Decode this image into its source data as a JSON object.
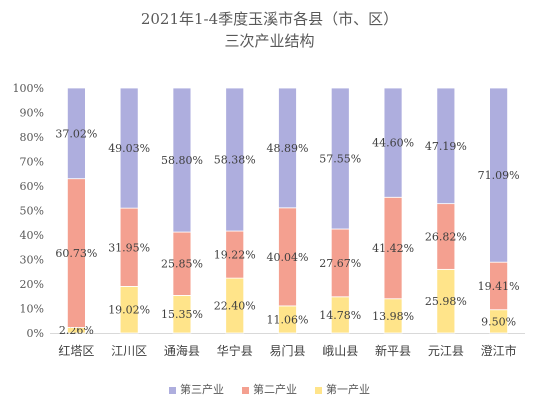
{
  "title": "2021年1-4季度玉溪市各县（市、区）",
  "subtitle": "三次产业结构",
  "chart_data": {
    "type": "bar",
    "stacked": true,
    "percent": true,
    "title": "2021年1-4季度玉溪市各县（市、区）",
    "subtitle": "三次产业结构",
    "categories": [
      "红塔区",
      "江川区",
      "通海县",
      "华宁县",
      "易门县",
      "峨山县",
      "新平县",
      "元江县",
      "澄江市"
    ],
    "ylim": [
      0,
      100
    ],
    "yticks": [
      "0%",
      "10%",
      "20%",
      "30%",
      "40%",
      "50%",
      "60%",
      "70%",
      "80%",
      "90%",
      "100%"
    ],
    "grid": false,
    "legend_position": "bottom",
    "series": [
      {
        "name": "第一产业",
        "color": "#ffe48a",
        "values": [
          2.26,
          19.02,
          15.35,
          22.4,
          11.06,
          14.78,
          13.98,
          25.98,
          9.5
        ],
        "labels": [
          "2.26%",
          "19.02%",
          "15.35%",
          "22.40%",
          "11.06%",
          "14.78%",
          "13.98%",
          "25.98%",
          "9.50%"
        ]
      },
      {
        "name": "第二产业",
        "color": "#f4a090",
        "values": [
          60.73,
          31.95,
          25.85,
          19.22,
          40.04,
          27.67,
          41.42,
          26.82,
          19.41
        ],
        "labels": [
          "60.73%",
          "31.95%",
          "25.85%",
          "19.22%",
          "40.04%",
          "27.67%",
          "41.42%",
          "26.82%",
          "19.41%"
        ]
      },
      {
        "name": "第三产业",
        "color": "#aeaede",
        "values": [
          37.02,
          49.03,
          58.8,
          58.38,
          48.89,
          57.55,
          44.6,
          47.19,
          71.09
        ],
        "labels": [
          "37.02%",
          "49.03%",
          "58.80%",
          "58.38%",
          "48.89%",
          "57.55%",
          "44.60%",
          "47.19%",
          "71.09%"
        ]
      }
    ],
    "legend_order": [
      "第三产业",
      "第二产业",
      "第一产业"
    ]
  }
}
